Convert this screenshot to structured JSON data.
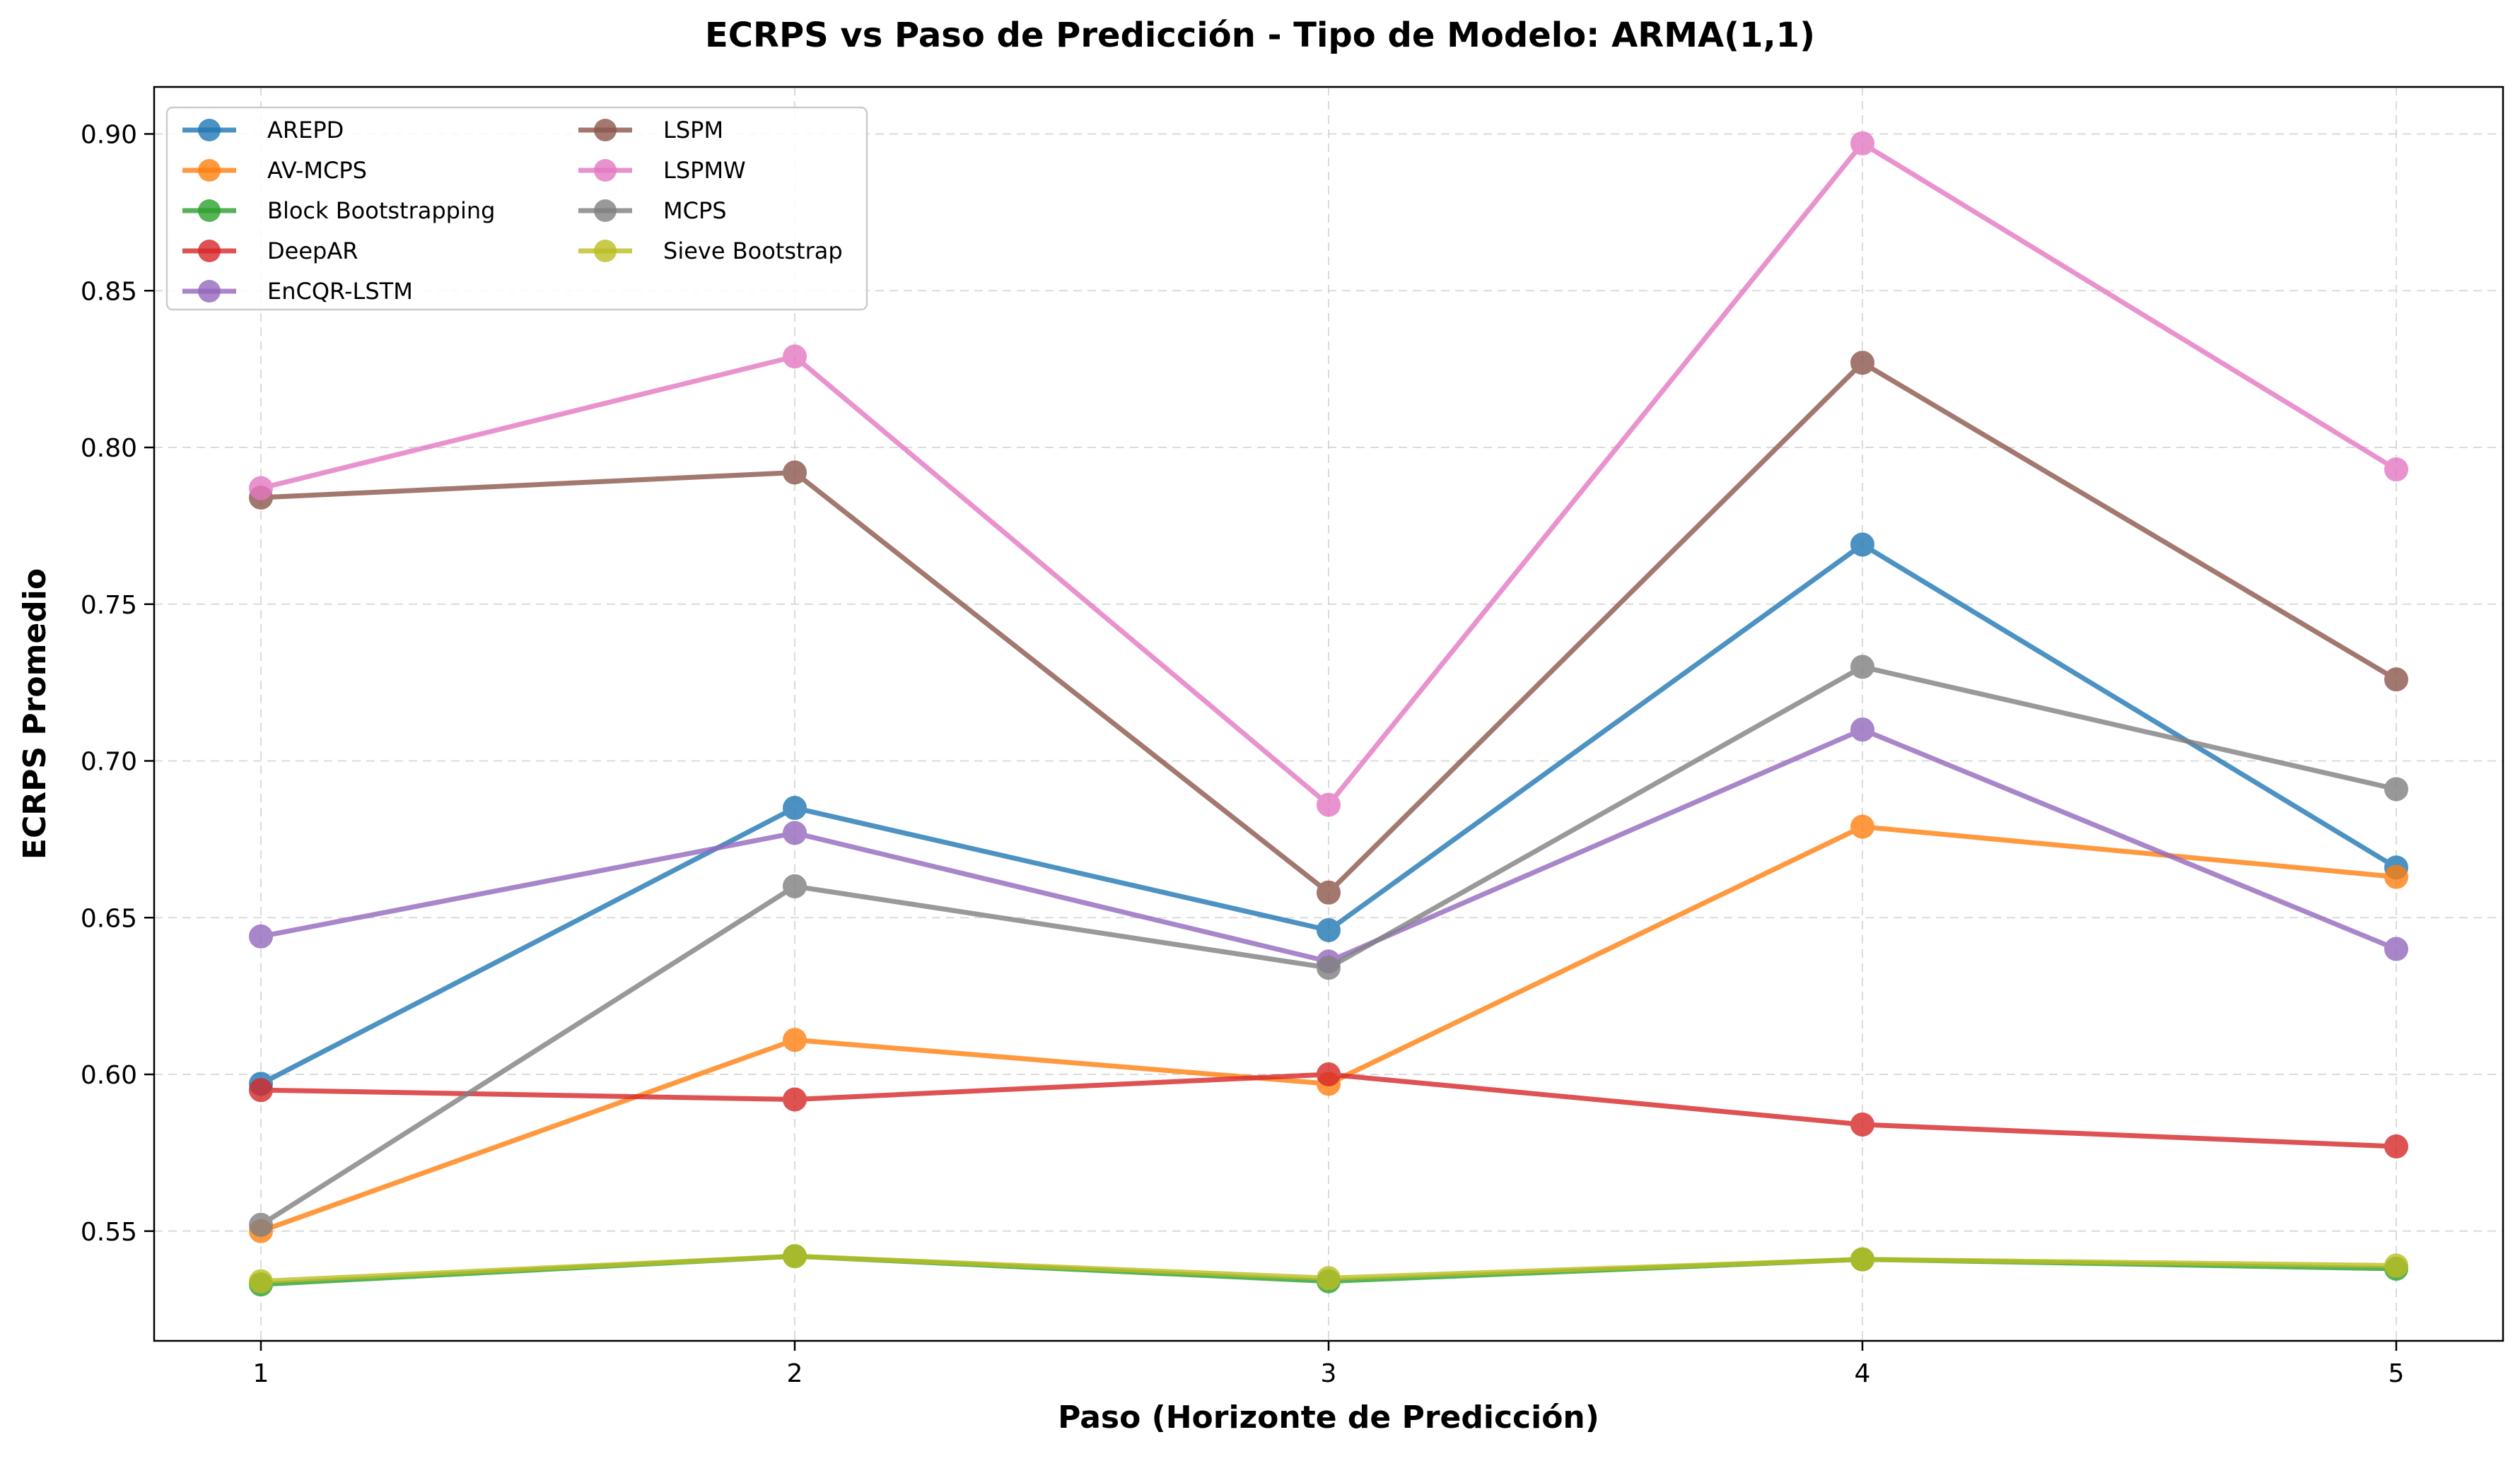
{
  "chart_data": {
    "type": "line",
    "title": "ECRPS vs Paso de Predicción - Tipo de Modelo: ARMA(1,1)",
    "xlabel": "Paso (Horizonte de Predicción)",
    "ylabel": "ECRPS Promedio",
    "x": [
      1,
      2,
      3,
      4,
      5
    ],
    "x_tick_labels": [
      "1",
      "2",
      "3",
      "4",
      "5"
    ],
    "xlim": [
      0.8,
      5.2
    ],
    "ylim": [
      0.515,
      0.915
    ],
    "y_ticks": [
      0.55,
      0.6,
      0.65,
      0.7,
      0.75,
      0.8,
      0.85,
      0.9
    ],
    "y_tick_labels": [
      "0.55",
      "0.60",
      "0.65",
      "0.70",
      "0.75",
      "0.80",
      "0.85",
      "0.90"
    ],
    "grid": true,
    "legend_position": "top-left",
    "legend_columns": 2,
    "series": [
      {
        "name": "AREPD",
        "color": "#1f77b4",
        "values": [
          0.597,
          0.685,
          0.646,
          0.769,
          0.666
        ]
      },
      {
        "name": "AV-MCPS",
        "color": "#ff7f0e",
        "values": [
          0.55,
          0.611,
          0.597,
          0.679,
          0.663
        ]
      },
      {
        "name": "Block Bootstrapping",
        "color": "#2ca02c",
        "values": [
          0.533,
          0.542,
          0.534,
          0.541,
          0.538
        ]
      },
      {
        "name": "DeepAR",
        "color": "#d62728",
        "values": [
          0.595,
          0.592,
          0.6,
          0.584,
          0.577
        ]
      },
      {
        "name": "EnCQR-LSTM",
        "color": "#9467bd",
        "values": [
          0.644,
          0.677,
          0.636,
          0.71,
          0.64
        ]
      },
      {
        "name": "LSPM",
        "color": "#8c564b",
        "values": [
          0.784,
          0.792,
          0.658,
          0.827,
          0.726
        ]
      },
      {
        "name": "LSPMW",
        "color": "#e377c2",
        "values": [
          0.787,
          0.829,
          0.686,
          0.897,
          0.793
        ]
      },
      {
        "name": "MCPS",
        "color": "#7f7f7f",
        "values": [
          0.552,
          0.66,
          0.634,
          0.73,
          0.691
        ]
      },
      {
        "name": "Sieve Bootstrap",
        "color": "#bcbd22",
        "values": [
          0.534,
          0.542,
          0.535,
          0.541,
          0.539
        ]
      }
    ]
  }
}
